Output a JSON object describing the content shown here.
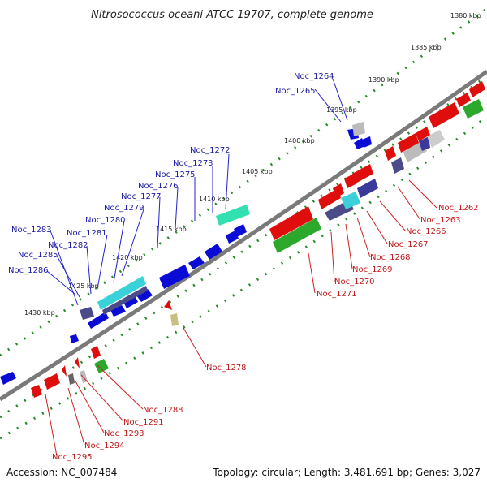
{
  "title": "Nitrosococcus oceani ATCC 19707, complete genome",
  "footer": {
    "accession": "Accession: NC_007484",
    "summary": "Topology: circular; Length: 3,481,691 bp; Genes: 3,027"
  },
  "colors": {
    "backbone": "#7d7d7d",
    "forward_gene": "#0b0bd6",
    "reverse_gene": "#e00d0d",
    "dotted_ring": "#2a8a2a",
    "blue_label": "#1a1aa6",
    "red_label": "#c01818"
  },
  "scale_ticks": [
    "1380 kbp",
    "1385 kbp",
    "1390 kbp",
    "1395 kbp",
    "1400 kbp",
    "1405 kbp",
    "1410 kbp",
    "1415 kbp",
    "1420 kbp",
    "1425 kbp",
    "1430 kbp"
  ],
  "forward_labels": [
    "Noc_1264",
    "Noc_1265",
    "Noc_1272",
    "Noc_1273",
    "Noc_1275",
    "Noc_1276",
    "Noc_1277",
    "Noc_1279",
    "Noc_1280",
    "Noc_1281",
    "Noc_1282",
    "Noc_1283",
    "Noc_1285",
    "Noc_1286"
  ],
  "reverse_labels": [
    "Noc_1262",
    "Noc_1263",
    "Noc_1266",
    "Noc_1267",
    "Noc_1268",
    "Noc_1269",
    "Noc_1270",
    "Noc_1271",
    "Noc_1278",
    "Noc_1288",
    "Noc_1291",
    "Noc_1293",
    "Noc_1294",
    "Noc_1295"
  ]
}
